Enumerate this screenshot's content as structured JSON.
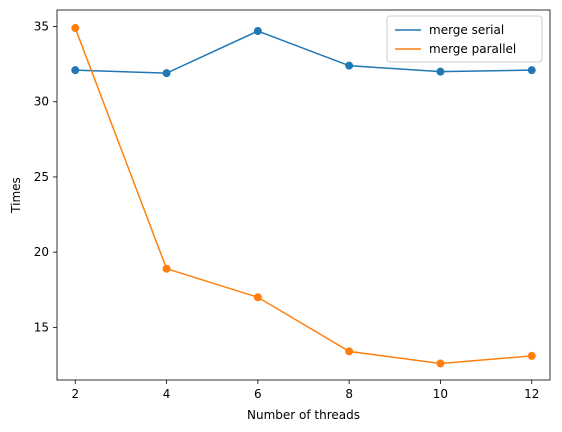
{
  "chart_data": {
    "type": "line",
    "title": "",
    "xlabel": "Number of threads",
    "ylabel": "Times",
    "x": [
      2,
      4,
      6,
      8,
      10,
      12
    ],
    "xticks": [
      "2",
      "4",
      "6",
      "8",
      "10",
      "12"
    ],
    "yticks": [
      "15",
      "20",
      "25",
      "30",
      "35"
    ],
    "xlim": [
      1.6,
      12.4
    ],
    "ylim": [
      11.5,
      36.1
    ],
    "grid": false,
    "legend_position": "top-right",
    "series": [
      {
        "name": "merge serial",
        "color": "#1f77b4",
        "values": [
          32.1,
          31.9,
          34.7,
          32.4,
          32.0,
          32.1
        ]
      },
      {
        "name": "merge parallel",
        "color": "#ff7f0e",
        "values": [
          34.9,
          18.9,
          17.0,
          13.4,
          12.6,
          13.1
        ]
      }
    ]
  }
}
